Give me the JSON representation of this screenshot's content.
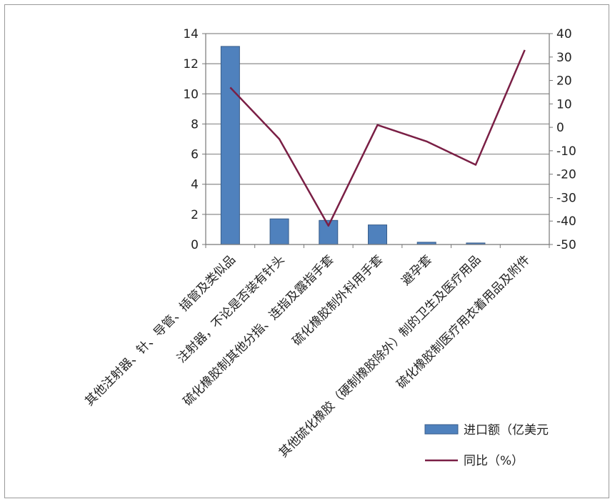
{
  "chart_data": {
    "type": "bar",
    "categories": [
      "其他注射器、针、导管、插管及类似品",
      "注射器，不论是否装有针头",
      "硫化橡胶制其他分指、连指及露指手套",
      "硫化橡胶制外科用手套",
      "避孕套",
      "其他硫化橡胶（硬制橡胶除外）制的卫生及医疗用品",
      "硫化橡胶制医疗用衣着用品及附件"
    ],
    "series": [
      {
        "name": "进口额（亿美元",
        "type": "bar",
        "axis": "left",
        "values": [
          13.15,
          1.7,
          1.6,
          1.3,
          0.15,
          0.1,
          0.0
        ]
      },
      {
        "name": "同比（%）",
        "type": "line",
        "axis": "right",
        "values": [
          17,
          -5,
          -42,
          1,
          -6,
          -16,
          33
        ]
      }
    ],
    "y_left": {
      "min": 0,
      "max": 14,
      "step": 2,
      "ticks": [
        "0",
        "2",
        "4",
        "6",
        "8",
        "10",
        "12",
        "14"
      ]
    },
    "y_right": {
      "min": -50,
      "max": 40,
      "step": 10,
      "ticks": [
        "-50",
        "-40",
        "-30",
        "-20",
        "-10",
        "0",
        "10",
        "20",
        "30",
        "40"
      ]
    },
    "grid": true,
    "legend_position": "bottom-right",
    "colors": {
      "bar": "#4f81bd",
      "bar_edge": "#385d8a",
      "line": "#7a1f45",
      "grid": "#8c8c8c"
    }
  }
}
